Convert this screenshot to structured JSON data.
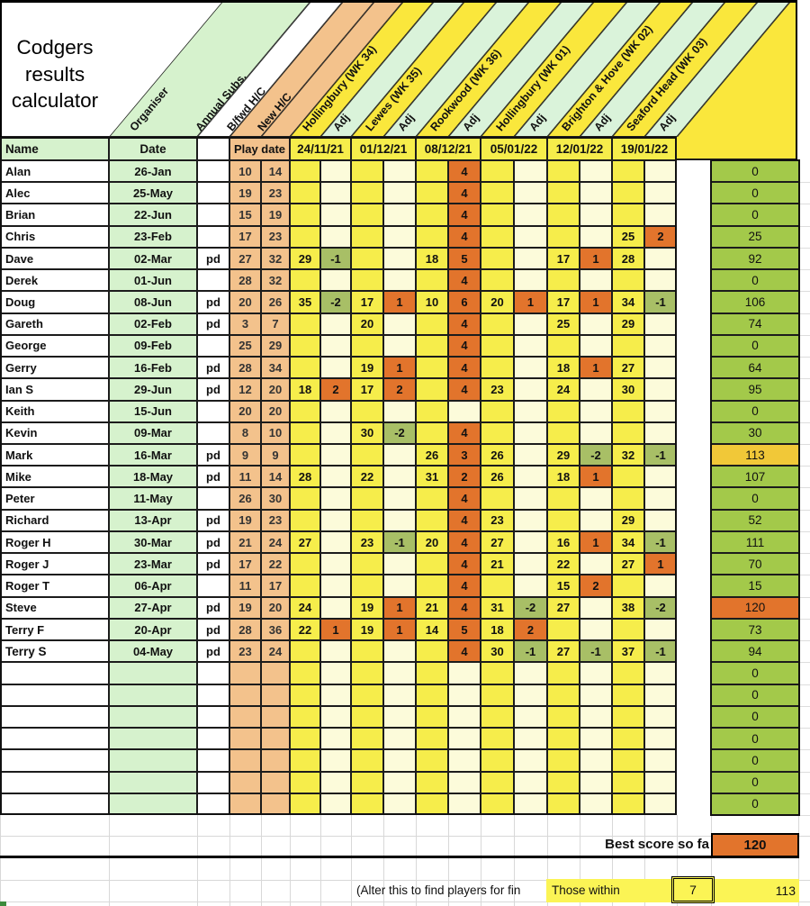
{
  "title": "Codgers\nresults\ncalculator",
  "diagonal_headers": [
    {
      "label": "Organiser"
    },
    {
      "label": "Annual Subs."
    },
    {
      "label": "B/fwd H/C"
    },
    {
      "label": "New H/C"
    },
    {
      "label": "Hollingbury (WK 34)"
    },
    {
      "label": "Adj"
    },
    {
      "label": "Lewes (WK 35)"
    },
    {
      "label": "Adj"
    },
    {
      "label": "Rookwood (WK 36)"
    },
    {
      "label": "Adj"
    },
    {
      "label": "Hollingbury (WK 01)"
    },
    {
      "label": "Adj"
    },
    {
      "label": "Brighton & Hove (WK 02)"
    },
    {
      "label": "Adj"
    },
    {
      "label": "Seaford Head (WK 03)"
    },
    {
      "label": "Adj"
    }
  ],
  "header_row": {
    "name": "Name",
    "date": "Date",
    "play_date": "Play date",
    "week_dates": [
      "24/11/21",
      "01/12/21",
      "08/12/21",
      "05/01/22",
      "12/01/22",
      "19/01/22"
    ]
  },
  "rows": [
    {
      "name": "Alan",
      "date": "26-Jan",
      "pd": "",
      "bfwd": "10",
      "newhc": "14",
      "scores": [
        "",
        "",
        "",
        "",
        "",
        "4",
        "",
        "",
        "",
        "",
        "",
        ""
      ],
      "total": "0"
    },
    {
      "name": "Alec",
      "date": "25-May",
      "pd": "",
      "bfwd": "19",
      "newhc": "23",
      "scores": [
        "",
        "",
        "",
        "",
        "",
        "4",
        "",
        "",
        "",
        "",
        "",
        ""
      ],
      "total": "0"
    },
    {
      "name": "Brian",
      "date": "22-Jun",
      "pd": "",
      "bfwd": "15",
      "newhc": "19",
      "scores": [
        "",
        "",
        "",
        "",
        "",
        "4",
        "",
        "",
        "",
        "",
        "",
        ""
      ],
      "total": "0"
    },
    {
      "name": "Chris",
      "date": "23-Feb",
      "pd": "",
      "bfwd": "17",
      "newhc": "23",
      "scores": [
        "",
        "",
        "",
        "",
        "",
        "4",
        "",
        "",
        "",
        "",
        "25",
        "2"
      ],
      "total": "25"
    },
    {
      "name": "Dave",
      "date": "02-Mar",
      "pd": "pd",
      "bfwd": "27",
      "newhc": "32",
      "scores": [
        "29",
        "-1",
        "",
        "",
        "18",
        "5",
        "",
        "",
        "17",
        "1",
        "28",
        ""
      ],
      "total": "92"
    },
    {
      "name": "Derek",
      "date": "01-Jun",
      "pd": "",
      "bfwd": "28",
      "newhc": "32",
      "scores": [
        "",
        "",
        "",
        "",
        "",
        "4",
        "",
        "",
        "",
        "",
        "",
        ""
      ],
      "total": "0"
    },
    {
      "name": "Doug",
      "date": "08-Jun",
      "pd": "pd",
      "bfwd": "20",
      "newhc": "26",
      "scores": [
        "35",
        "-2",
        "17",
        "1",
        "10",
        "6",
        "20",
        "1",
        "17",
        "1",
        "34",
        "-1"
      ],
      "total": "106"
    },
    {
      "name": "Gareth",
      "date": "02-Feb",
      "pd": "pd",
      "bfwd": "3",
      "newhc": "7",
      "scores": [
        "",
        "",
        "20",
        "",
        "",
        "4",
        "",
        "",
        "25",
        "",
        "29",
        ""
      ],
      "total": "74"
    },
    {
      "name": "George",
      "date": "09-Feb",
      "pd": "",
      "bfwd": "25",
      "newhc": "29",
      "scores": [
        "",
        "",
        "",
        "",
        "",
        "4",
        "",
        "",
        "",
        "",
        "",
        ""
      ],
      "total": "0"
    },
    {
      "name": "Gerry",
      "date": "16-Feb",
      "pd": "pd",
      "bfwd": "28",
      "newhc": "34",
      "scores": [
        "",
        "",
        "19",
        "1",
        "",
        "4",
        "",
        "",
        "18",
        "1",
        "27",
        ""
      ],
      "total": "64"
    },
    {
      "name": "Ian S",
      "date": "29-Jun",
      "pd": "pd",
      "bfwd": "12",
      "newhc": "20",
      "scores": [
        "18",
        "2",
        "17",
        "2",
        "",
        "4",
        "23",
        "",
        "24",
        "",
        "30",
        ""
      ],
      "total": "95"
    },
    {
      "name": "Keith",
      "date": "15-Jun",
      "pd": "",
      "bfwd": "20",
      "newhc": "20",
      "scores": [
        "",
        "",
        "",
        "",
        "",
        "",
        "",
        "",
        "",
        "",
        "",
        ""
      ],
      "total": "0"
    },
    {
      "name": "Kevin",
      "date": "09-Mar",
      "pd": "",
      "bfwd": "8",
      "newhc": "10",
      "scores": [
        "",
        "",
        "30",
        "-2",
        "",
        "4",
        "",
        "",
        "",
        "",
        "",
        ""
      ],
      "total": "30"
    },
    {
      "name": "Mark",
      "date": "16-Mar",
      "pd": "pd",
      "bfwd": "9",
      "newhc": "9",
      "scores": [
        "",
        "",
        "",
        "",
        "26",
        "3",
        "26",
        "",
        "29",
        "-2",
        "32",
        "-1"
      ],
      "total": "113",
      "highlight": "gold"
    },
    {
      "name": "Mike",
      "date": "18-May",
      "pd": "pd",
      "bfwd": "11",
      "newhc": "14",
      "scores": [
        "28",
        "",
        "22",
        "",
        "31",
        "2",
        "26",
        "",
        "18",
        "1",
        "",
        ""
      ],
      "total": "107"
    },
    {
      "name": "Peter",
      "date": "11-May",
      "pd": "",
      "bfwd": "26",
      "newhc": "30",
      "scores": [
        "",
        "",
        "",
        "",
        "",
        "4",
        "",
        "",
        "",
        "",
        "",
        ""
      ],
      "total": "0"
    },
    {
      "name": "Richard",
      "date": "13-Apr",
      "pd": "pd",
      "bfwd": "19",
      "newhc": "23",
      "scores": [
        "",
        "",
        "",
        "",
        "",
        "4",
        "23",
        "",
        "",
        "",
        "29",
        ""
      ],
      "total": "52"
    },
    {
      "name": "Roger H",
      "date": "30-Mar",
      "pd": "pd",
      "bfwd": "21",
      "newhc": "24",
      "scores": [
        "27",
        "",
        "23",
        "-1",
        "20",
        "4",
        "27",
        "",
        "16",
        "1",
        "34",
        "-1"
      ],
      "total": "111"
    },
    {
      "name": "Roger J",
      "date": "23-Mar",
      "pd": "pd",
      "bfwd": "17",
      "newhc": "22",
      "scores": [
        "",
        "",
        "",
        "",
        "",
        "4",
        "21",
        "",
        "22",
        "",
        "27",
        "1"
      ],
      "total": "70"
    },
    {
      "name": "Roger T",
      "date": "06-Apr",
      "pd": "",
      "bfwd": "11",
      "newhc": "17",
      "scores": [
        "",
        "",
        "",
        "",
        "",
        "4",
        "",
        "",
        "15",
        "2",
        "",
        ""
      ],
      "total": "15"
    },
    {
      "name": "Steve",
      "date": "27-Apr",
      "pd": "pd",
      "bfwd": "19",
      "newhc": "20",
      "scores": [
        "24",
        "",
        "19",
        "1",
        "21",
        "4",
        "31",
        "-2",
        "27",
        "",
        "38",
        "-2"
      ],
      "total": "120",
      "highlight": "orange"
    },
    {
      "name": "Terry F",
      "date": "20-Apr",
      "pd": "pd",
      "bfwd": "28",
      "newhc": "36",
      "scores": [
        "22",
        "1",
        "19",
        "1",
        "14",
        "5",
        "18",
        "2",
        "",
        "",
        "",
        ""
      ],
      "total": "73"
    },
    {
      "name": "Terry S",
      "date": "04-May",
      "pd": "pd",
      "bfwd": "23",
      "newhc": "24",
      "scores": [
        "",
        "",
        "",
        "",
        "",
        "4",
        "30",
        "-1",
        "27",
        "-1",
        "37",
        "-1"
      ],
      "total": "94",
      "bold": true
    },
    {
      "name": "",
      "date": "",
      "pd": "",
      "bfwd": "",
      "newhc": "",
      "scores": [
        "",
        "",
        "",
        "",
        "",
        "",
        "",
        "",
        "",
        "",
        "",
        ""
      ],
      "total": "0"
    },
    {
      "name": "",
      "date": "",
      "pd": "",
      "bfwd": "",
      "newhc": "",
      "scores": [
        "",
        "",
        "",
        "",
        "",
        "",
        "",
        "",
        "",
        "",
        "",
        ""
      ],
      "total": "0"
    },
    {
      "name": "",
      "date": "",
      "pd": "",
      "bfwd": "",
      "newhc": "",
      "scores": [
        "",
        "",
        "",
        "",
        "",
        "",
        "",
        "",
        "",
        "",
        "",
        ""
      ],
      "total": "0"
    },
    {
      "name": "",
      "date": "",
      "pd": "",
      "bfwd": "",
      "newhc": "",
      "scores": [
        "",
        "",
        "",
        "",
        "",
        "",
        "",
        "",
        "",
        "",
        "",
        ""
      ],
      "total": "0"
    },
    {
      "name": "",
      "date": "",
      "pd": "",
      "bfwd": "",
      "newhc": "",
      "scores": [
        "",
        "",
        "",
        "",
        "",
        "",
        "",
        "",
        "",
        "",
        "",
        ""
      ],
      "total": "0"
    },
    {
      "name": "",
      "date": "",
      "pd": "",
      "bfwd": "",
      "newhc": "",
      "scores": [
        "",
        "",
        "",
        "",
        "",
        "",
        "",
        "",
        "",
        "",
        "",
        ""
      ],
      "total": "0"
    },
    {
      "name": "",
      "date": "",
      "pd": "",
      "bfwd": "",
      "newhc": "",
      "scores": [
        "",
        "",
        "",
        "",
        "",
        "",
        "",
        "",
        "",
        "",
        "",
        ""
      ],
      "total": "0"
    }
  ],
  "footer": {
    "best_label": "Best score so fa",
    "best_value": "120",
    "alter_text": "(Alter this to find players for fin",
    "those_within": "Those within",
    "within_value": "7",
    "threshold_value": "113"
  },
  "colors": {
    "green_light": "#d6f2cd",
    "mint": "#daf3da",
    "tan": "#f3c28c",
    "yellow": "#fae73c",
    "yellow_cell": "#f6ed4b",
    "pale": "#fcfbda",
    "orange": "#e2742c",
    "olive": "#a8bf66",
    "total_green": "#a3c94a",
    "gold": "#f1c838",
    "footer_yellow": "#fbf455"
  }
}
